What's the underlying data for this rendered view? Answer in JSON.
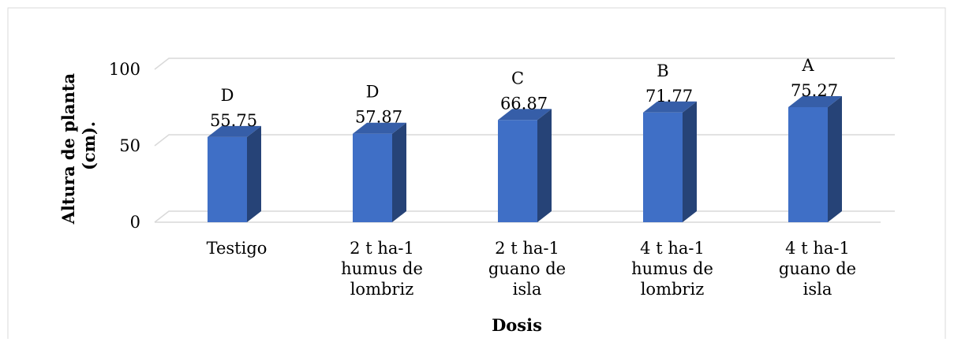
{
  "chart_data": {
    "type": "bar3d",
    "y_label": [
      "Altura de planta",
      "(cm)."
    ],
    "x_label": "Dosis",
    "categories": [
      [
        "Testigo"
      ],
      [
        "2 t ha-1",
        "humus de",
        "lombriz"
      ],
      [
        "2 t ha-1",
        "guano de",
        "isla"
      ],
      [
        "4 t ha-1",
        "humus de",
        "lombriz"
      ],
      [
        "4 t ha-1",
        "guano de",
        "isla"
      ]
    ],
    "values": [
      55.75,
      57.87,
      66.87,
      71.77,
      75.27
    ],
    "annotations": [
      "D",
      "D",
      "C",
      "B",
      "A"
    ],
    "color": "#3f6fc6",
    "ylim": [
      0,
      100
    ],
    "yticks": [
      0,
      50,
      100
    ],
    "grid": true
  }
}
